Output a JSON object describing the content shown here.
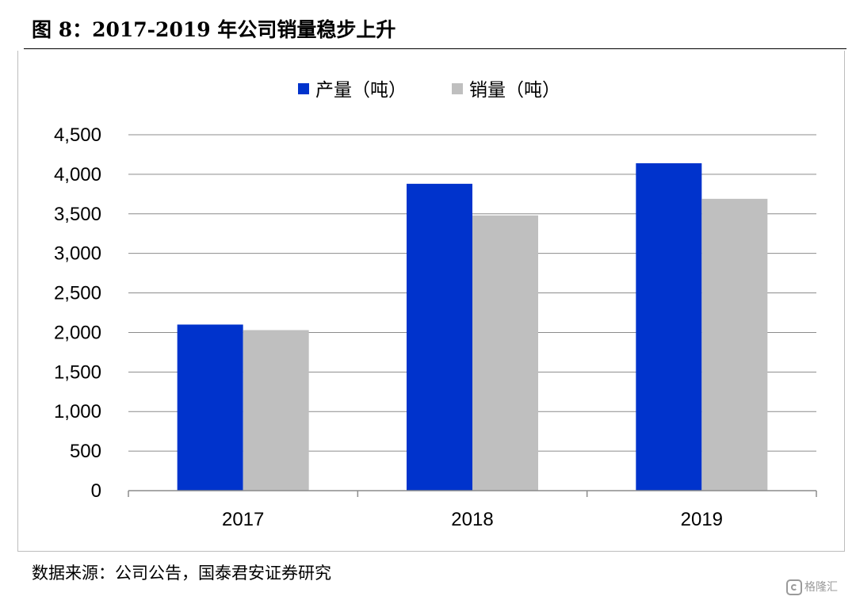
{
  "figure": {
    "title": "图 8：2017-2019 年公司销量稳步上升",
    "source": "数据来源：公司公告，国泰君安证券研究",
    "watermark": "格隆汇"
  },
  "colors": {
    "production": "#0033cc",
    "sales": "#bfbfbf",
    "grid": "#8c8c8c"
  },
  "chart_data": {
    "type": "bar",
    "categories": [
      "2017",
      "2018",
      "2019"
    ],
    "series": [
      {
        "name": "产量（吨）",
        "values": [
          2100,
          3880,
          4140
        ]
      },
      {
        "name": "销量（吨）",
        "values": [
          2030,
          3480,
          3690
        ]
      }
    ],
    "ylim": [
      0,
      4500
    ],
    "y_ticks": [
      0,
      500,
      1000,
      1500,
      2000,
      2500,
      3000,
      3500,
      4000,
      4500
    ],
    "y_tick_labels": [
      "0",
      "500",
      "1,000",
      "1,500",
      "2,000",
      "2,500",
      "3,000",
      "3,500",
      "4,000",
      "4,500"
    ],
    "grid": true,
    "legend": "top-center",
    "title": "",
    "xlabel": "",
    "ylabel": ""
  }
}
